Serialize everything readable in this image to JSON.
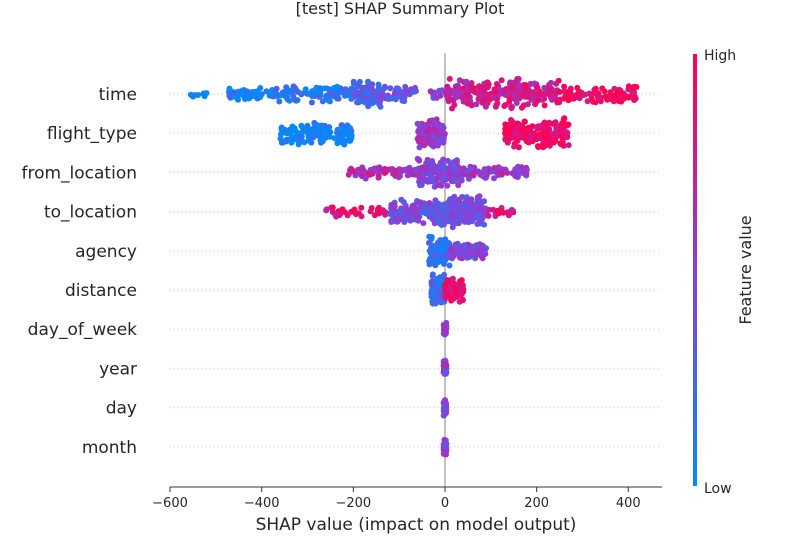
{
  "chart_data": {
    "type": "scatter",
    "subtype": "shap-beeswarm",
    "title": "[test] SHAP Summary Plot",
    "xlabel": "SHAP value (impact on model output)",
    "xlim": [
      -600,
      470
    ],
    "xticks": [
      -600,
      -400,
      -200,
      0,
      200,
      400
    ],
    "xtick_labels": [
      "−600",
      "−400",
      "−200",
      "0",
      "200",
      "400"
    ],
    "colorbar": {
      "title": "Feature value",
      "high_label": "High",
      "low_label": "Low",
      "low_color": "#008bfb",
      "high_color": "#ff0052"
    },
    "features": [
      {
        "name": "time",
        "clusters": [
          {
            "min": -560,
            "max": -510,
            "n": 8,
            "spread": 0.25,
            "c": 0.0
          },
          {
            "min": -480,
            "max": -380,
            "n": 45,
            "spread": 0.45,
            "c": 0.05
          },
          {
            "min": -380,
            "max": -200,
            "n": 95,
            "spread": 0.6,
            "c": 0.12
          },
          {
            "min": -200,
            "max": -140,
            "n": 80,
            "spread": 0.9,
            "c": 0.3
          },
          {
            "min": -140,
            "max": -60,
            "n": 40,
            "spread": 0.6,
            "c": 0.35
          },
          {
            "min": -40,
            "max": 10,
            "n": 15,
            "spread": 0.4,
            "c": 0.5
          },
          {
            "min": 0,
            "max": 60,
            "n": 70,
            "spread": 1.0,
            "c": 0.75
          },
          {
            "min": 60,
            "max": 250,
            "n": 170,
            "spread": 1.0,
            "c": 0.78
          },
          {
            "min": 250,
            "max": 420,
            "n": 90,
            "spread": 0.6,
            "c": 0.95
          }
        ]
      },
      {
        "name": "flight_type",
        "clusters": [
          {
            "min": -360,
            "max": -200,
            "n": 140,
            "spread": 0.8,
            "c": 0.04
          },
          {
            "min": -60,
            "max": 0,
            "n": 110,
            "spread": 1.0,
            "c": 0.55
          },
          {
            "min": 130,
            "max": 270,
            "n": 190,
            "spread": 1.0,
            "c": 0.95
          }
        ]
      },
      {
        "name": "from_location",
        "clusters": [
          {
            "min": -210,
            "max": -60,
            "n": 80,
            "spread": 0.45,
            "c": 0.65
          },
          {
            "min": -60,
            "max": 40,
            "n": 200,
            "spread": 1.0,
            "c": 0.45
          },
          {
            "min": 40,
            "max": 180,
            "n": 80,
            "spread": 0.45,
            "c": 0.55
          }
        ]
      },
      {
        "name": "to_location",
        "clusters": [
          {
            "min": -260,
            "max": -120,
            "n": 40,
            "spread": 0.35,
            "c": 0.85
          },
          {
            "min": -120,
            "max": -20,
            "n": 110,
            "spread": 0.8,
            "c": 0.4
          },
          {
            "min": -20,
            "max": 90,
            "n": 200,
            "spread": 1.0,
            "c": 0.4
          },
          {
            "min": 90,
            "max": 150,
            "n": 20,
            "spread": 0.3,
            "c": 0.85
          }
        ]
      },
      {
        "name": "agency",
        "clusters": [
          {
            "min": -35,
            "max": 10,
            "n": 120,
            "spread": 1.0,
            "c": 0.15
          },
          {
            "min": 10,
            "max": 90,
            "n": 100,
            "spread": 0.55,
            "c": 0.45
          }
        ]
      },
      {
        "name": "distance",
        "clusters": [
          {
            "min": -30,
            "max": 0,
            "n": 110,
            "spread": 1.0,
            "c": 0.2
          },
          {
            "min": 0,
            "max": 40,
            "n": 110,
            "spread": 0.85,
            "c": 0.9
          }
        ]
      },
      {
        "name": "day_of_week",
        "clusters": [
          {
            "min": -3,
            "max": 3,
            "n": 45,
            "spread": 0.55,
            "c": 0.5
          }
        ]
      },
      {
        "name": "year",
        "clusters": [
          {
            "min": -3,
            "max": 3,
            "n": 45,
            "spread": 0.55,
            "c": 0.5
          }
        ]
      },
      {
        "name": "day",
        "clusters": [
          {
            "min": -3,
            "max": 3,
            "n": 45,
            "spread": 0.55,
            "c": 0.5
          }
        ]
      },
      {
        "name": "month",
        "clusters": [
          {
            "min": -3,
            "max": 3,
            "n": 45,
            "spread": 0.55,
            "c": 0.5
          }
        ]
      }
    ]
  }
}
